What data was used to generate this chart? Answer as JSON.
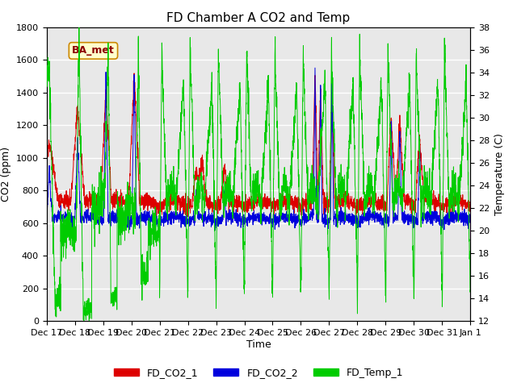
{
  "title": "FD Chamber A CO2 and Temp",
  "xlabel": "Time",
  "ylabel_left": "CO2 (ppm)",
  "ylabel_right": "Temperature (C)",
  "ylim_left": [
    0,
    1800
  ],
  "ylim_right": [
    12,
    38
  ],
  "yticks_left": [
    0,
    200,
    400,
    600,
    800,
    1000,
    1200,
    1400,
    1600,
    1800
  ],
  "yticks_right": [
    12,
    14,
    16,
    18,
    20,
    22,
    24,
    26,
    28,
    30,
    32,
    34,
    36,
    38
  ],
  "color_co2_1": "#dd0000",
  "color_co2_2": "#0000dd",
  "color_temp": "#00cc00",
  "legend_labels": [
    "FD_CO2_1",
    "FD_CO2_2",
    "FD_Temp_1"
  ],
  "annotation_text": "BA_met",
  "plot_bg_color": "#e8e8e8",
  "grid_color": "white",
  "title_fontsize": 11,
  "axis_fontsize": 9,
  "tick_fontsize": 8,
  "legend_fontsize": 9
}
